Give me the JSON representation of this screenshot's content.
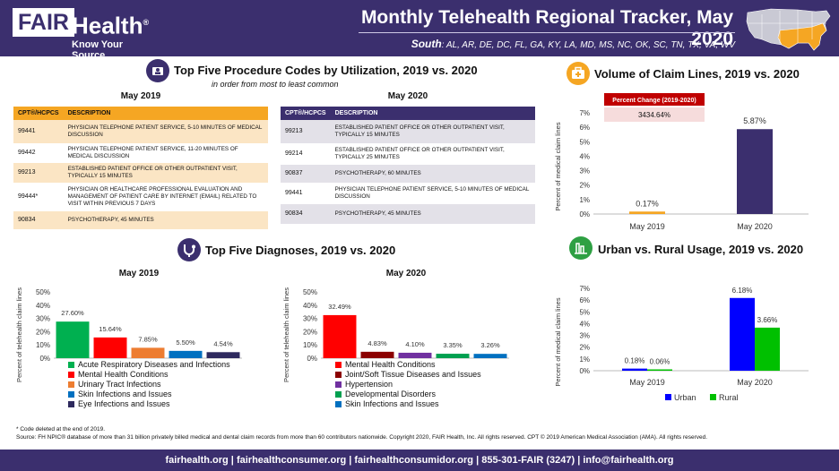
{
  "header": {
    "logo_fair": "FAIR",
    "logo_health": "Health",
    "logo_reg": "®",
    "logo_tagline": "Know Your Source",
    "title": "Monthly Telehealth Regional Tracker, May 2020",
    "region_name": "South",
    "region_states": ": AL, AR, DE, DC, FL, GA, KY, LA, MD, MS, NC, OK, SC, TN, TX, VA, WV",
    "map_highlight_color": "#f5a623"
  },
  "procedures": {
    "title": "Top Five Procedure Codes by Utilization, 2019 vs. 2020",
    "subtitle": "in order from most to least common",
    "col_code": "CPT®/HCPCS",
    "col_desc": "DESCRIPTION",
    "may2019": {
      "label": "May 2019",
      "rows": [
        {
          "code": "99441",
          "desc": "PHYSICIAN TELEPHONE PATIENT SERVICE, 5-10 MINUTES OF MEDICAL DISCUSSION"
        },
        {
          "code": "99442",
          "desc": "PHYSICIAN TELEPHONE PATIENT SERVICE, 11-20 MINUTES OF MEDICAL DISCUSSION"
        },
        {
          "code": "99213",
          "desc": "ESTABLISHED PATIENT OFFICE OR OTHER OUTPATIENT VISIT, TYPICALLY 15 MINUTES"
        },
        {
          "code": "99444*",
          "desc": "PHYSICIAN OR HEALTHCARE PROFESSIONAL EVALUATION AND MANAGEMENT OF PATIENT CARE BY INTERNET (EMAIL) RELATED TO VISIT WITHIN PREVIOUS 7 DAYS"
        },
        {
          "code": "90834",
          "desc": "PSYCHOTHERAPY, 45 MINUTES"
        }
      ]
    },
    "may2020": {
      "label": "May 2020",
      "rows": [
        {
          "code": "99213",
          "desc": "ESTABLISHED PATIENT OFFICE OR OTHER OUTPATIENT VISIT, TYPICALLY 15 MINUTES"
        },
        {
          "code": "99214",
          "desc": "ESTABLISHED PATIENT OFFICE OR OTHER OUTPATIENT VISIT, TYPICALLY 25 MINUTES"
        },
        {
          "code": "90837",
          "desc": "PSYCHOTHERAPY, 60 MINUTES"
        },
        {
          "code": "99441",
          "desc": "PHYSICIAN TELEPHONE PATIENT SERVICE, 5-10 MINUTES OF MEDICAL DISCUSSION"
        },
        {
          "code": "90834",
          "desc": "PSYCHOTHERAPY, 45 MINUTES"
        }
      ]
    }
  },
  "diagnoses": {
    "title": "Top Five Diagnoses, 2019 vs. 2020"
  },
  "volume": {
    "title": "Volume of Claim Lines, 2019 vs. 2020",
    "pct_change_label": "Percent Change (2019-2020)",
    "pct_change_value": "3434.64%"
  },
  "urban_rural": {
    "title": "Urban vs. Rural Usage, 2019 vs. 2020"
  },
  "chart_data": [
    {
      "id": "dx2019",
      "type": "bar",
      "title": "May 2019",
      "ylabel": "Percent of telehealth claim lines",
      "ylim": [
        0,
        50
      ],
      "yticks": [
        "0%",
        "10%",
        "20%",
        "30%",
        "40%",
        "50%"
      ],
      "categories": [
        "Acute Respiratory Diseases and Infections",
        "Mental Health Conditions",
        "Urinary Tract Infections",
        "Skin Infections and Issues",
        "Eye Infections and Issues"
      ],
      "values": [
        27.6,
        15.64,
        7.85,
        5.5,
        4.54
      ],
      "labels": [
        "27.60%",
        "15.64%",
        "7.85%",
        "5.50%",
        "4.54%"
      ],
      "colors": [
        "#00b050",
        "#ff0000",
        "#ed7d31",
        "#0070c0",
        "#2e2a5e"
      ]
    },
    {
      "id": "dx2020",
      "type": "bar",
      "title": "May 2020",
      "ylabel": "Percent of telehealth claim lines",
      "ylim": [
        0,
        50
      ],
      "yticks": [
        "0%",
        "10%",
        "20%",
        "30%",
        "40%",
        "50%"
      ],
      "categories": [
        "Mental Health Conditions",
        "Joint/Soft Tissue Diseases and Issues",
        "Hypertension",
        "Developmental Disorders",
        "Skin Infections and Issues"
      ],
      "values": [
        32.49,
        4.83,
        4.1,
        3.35,
        3.26
      ],
      "labels": [
        "32.49%",
        "4.83%",
        "4.10%",
        "3.35%",
        "3.26%"
      ],
      "colors": [
        "#ff0000",
        "#8b0000",
        "#7030a0",
        "#00a050",
        "#0070c0"
      ]
    },
    {
      "id": "volume",
      "type": "bar",
      "ylabel": "Percent of medical claim lines",
      "ylim": [
        0,
        7
      ],
      "yticks": [
        "0%",
        "1%",
        "2%",
        "3%",
        "4%",
        "5%",
        "6%",
        "7%"
      ],
      "categories": [
        "May 2019",
        "May 2020"
      ],
      "values": [
        0.17,
        5.87
      ],
      "labels": [
        "0.17%",
        "5.87%"
      ],
      "colors": [
        "#f5a623",
        "#3b2f6e"
      ]
    },
    {
      "id": "urban",
      "type": "bar",
      "ylabel": "Percent of medical claim lines",
      "ylim": [
        0,
        7
      ],
      "yticks": [
        "0%",
        "1%",
        "2%",
        "3%",
        "4%",
        "5%",
        "6%",
        "7%"
      ],
      "categories": [
        "May 2019",
        "May 2020"
      ],
      "series": [
        {
          "name": "Urban",
          "values": [
            0.18,
            6.18
          ],
          "labels": [
            "0.18%",
            "6.18%"
          ],
          "color": "#0000ff"
        },
        {
          "name": "Rural",
          "values": [
            0.06,
            3.66
          ],
          "labels": [
            "0.06%",
            "3.66%"
          ],
          "color": "#00c000"
        }
      ]
    }
  ],
  "footnotes": {
    "deleted": "* Code deleted at the end of 2019.",
    "source": "Source: FH NPIC® database of more than 31 billion privately billed medical and dental claim records from more than 60 contributors nationwide. Copyright 2020, FAIR Health, Inc. All rights reserved. CPT © 2019 American Medical Association (AMA). All rights reserved."
  },
  "footer": {
    "text": "fairhealth.org  |  fairhealthconsumer.org  |  fairhealthconsumidor.org  |  855-301-FAIR (3247)  |  info@fairhealth.org"
  }
}
